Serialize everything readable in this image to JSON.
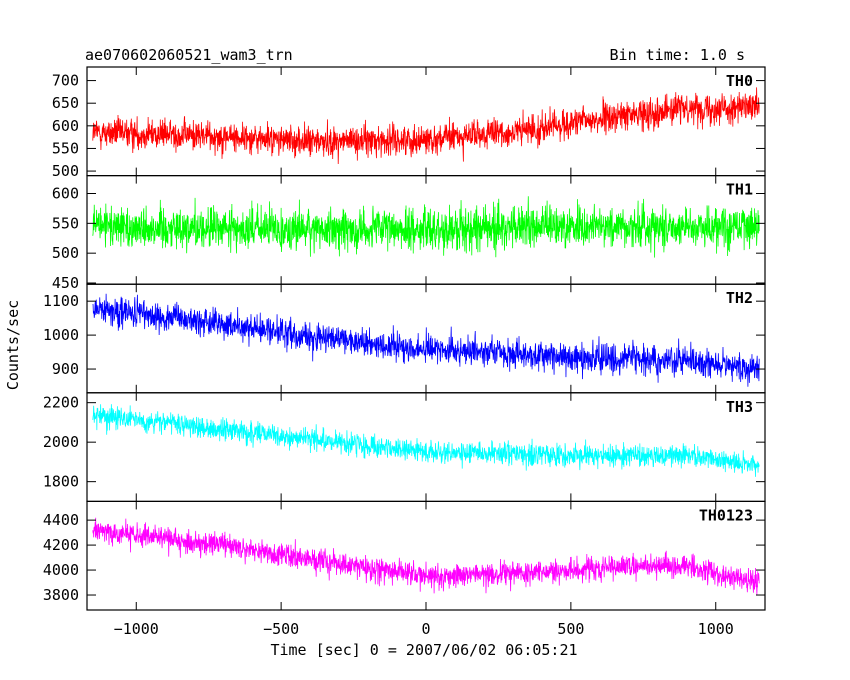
{
  "header": {
    "title": "ae070602060521_wam3_trn",
    "bin_time": "Bin time: 1.0 s"
  },
  "chart_data": {
    "type": "line",
    "title": "ae070602060521_wam3_trn",
    "subtitle": "Bin time: 1.0 s",
    "xlabel": "Time [sec] 0 = 2007/06/02 06:05:21",
    "ylabel": "Counts/sec",
    "xlim": [
      -1170,
      1170
    ],
    "x_data_range": [
      -1150,
      1150
    ],
    "bin_time_s": 1.0,
    "x_ticks": [
      -1000,
      -500,
      0,
      500,
      1000
    ],
    "x_tick_labels": [
      "−1000",
      "−500",
      "0",
      "500",
      "1000"
    ],
    "grid": false,
    "panels": [
      {
        "name": "TH0",
        "color": "#ff0000",
        "ylim": [
          490,
          730
        ],
        "yticks": [
          500,
          550,
          600,
          650,
          700
        ],
        "trend": [
          [
            -1150,
            585
          ],
          [
            -800,
            580
          ],
          [
            -400,
            565
          ],
          [
            0,
            570
          ],
          [
            300,
            585
          ],
          [
            600,
            615
          ],
          [
            900,
            640
          ],
          [
            1150,
            640
          ]
        ],
        "noise": 30
      },
      {
        "name": "TH1",
        "color": "#00ff00",
        "ylim": [
          448,
          630
        ],
        "yticks": [
          450,
          500,
          550,
          600
        ],
        "trend": [
          [
            -1150,
            545
          ],
          [
            -500,
            540
          ],
          [
            0,
            540
          ],
          [
            500,
            545
          ],
          [
            1150,
            545
          ]
        ],
        "noise": 32
      },
      {
        "name": "TH2",
        "color": "#0000ff",
        "ylim": [
          830,
          1150
        ],
        "yticks": [
          900,
          1000,
          1100
        ],
        "trend": [
          [
            -1150,
            1080
          ],
          [
            -700,
            1030
          ],
          [
            -300,
            985
          ],
          [
            0,
            960
          ],
          [
            500,
            935
          ],
          [
            900,
            925
          ],
          [
            1150,
            900
          ]
        ],
        "noise": 38
      },
      {
        "name": "TH3",
        "color": "#00ffff",
        "ylim": [
          1700,
          2250
        ],
        "yticks": [
          1800,
          2000,
          2200
        ],
        "trend": [
          [
            -1150,
            2140
          ],
          [
            -700,
            2060
          ],
          [
            -300,
            2000
          ],
          [
            0,
            1950
          ],
          [
            500,
            1930
          ],
          [
            900,
            1930
          ],
          [
            1150,
            1880
          ]
        ],
        "noise": 50
      },
      {
        "name": "TH0123",
        "color": "#ff00ff",
        "ylim": [
          3680,
          4550
        ],
        "yticks": [
          3800,
          4000,
          4200,
          4400
        ],
        "trend": [
          [
            -1150,
            4330
          ],
          [
            -700,
            4200
          ],
          [
            -300,
            4050
          ],
          [
            0,
            3950
          ],
          [
            300,
            3970
          ],
          [
            700,
            4030
          ],
          [
            900,
            4030
          ],
          [
            1150,
            3900
          ]
        ],
        "noise": 85
      }
    ]
  }
}
